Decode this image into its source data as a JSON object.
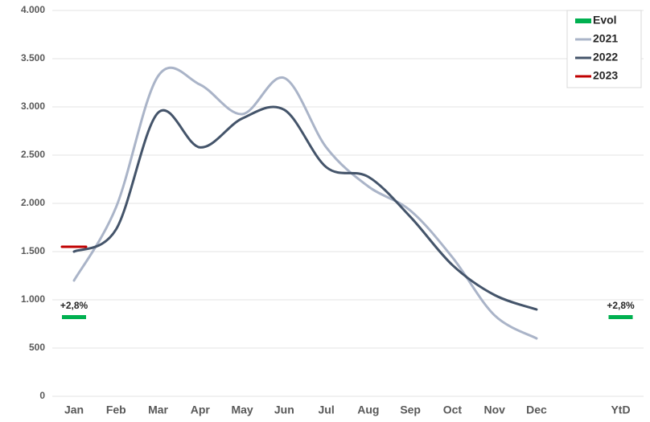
{
  "chart_data": {
    "type": "line",
    "categories": [
      "Jan",
      "Feb",
      "Mar",
      "Apr",
      "May",
      "Jun",
      "Jul",
      "Aug",
      "Sep",
      "Oct",
      "Nov",
      "Dec",
      null,
      "YtD"
    ],
    "series": [
      {
        "name": "Evol",
        "color": "#00b050",
        "values": [
          2.8,
          null,
          null,
          null,
          null,
          null,
          null,
          null,
          null,
          null,
          null,
          null,
          null,
          2.8
        ],
        "value_labels": [
          "+2,8%",
          null,
          null,
          null,
          null,
          null,
          null,
          null,
          null,
          null,
          null,
          null,
          null,
          "+2,8%"
        ]
      },
      {
        "name": "2021",
        "color": "#aab4c8",
        "values": [
          1200,
          1960,
          3320,
          3230,
          2925,
          3300,
          2580,
          2175,
          1925,
          1440,
          840,
          600,
          null,
          null
        ]
      },
      {
        "name": "2022",
        "color": "#44546a",
        "values": [
          1500,
          1730,
          2940,
          2580,
          2880,
          2970,
          2375,
          2275,
          1860,
          1360,
          1050,
          900,
          null,
          null
        ]
      },
      {
        "name": "2023",
        "color": "#c00000",
        "values": [
          1550,
          null,
          null,
          null,
          null,
          null,
          null,
          null,
          null,
          null,
          null,
          null,
          null,
          null
        ]
      }
    ],
    "ylim": [
      0,
      4000
    ],
    "yticks": [
      0,
      500,
      {
        "value": 1000,
        "label": "1.000"
      },
      {
        "value": 1500,
        "label": "1.500"
      },
      {
        "value": 2000,
        "label": "2.000"
      },
      {
        "value": 2500,
        "label": "2.500"
      },
      {
        "value": 3000,
        "label": "3.000"
      },
      {
        "value": 3500,
        "label": "3.500"
      },
      {
        "value": 4000,
        "label": "4.000"
      }
    ],
    "grid": true,
    "legend": "upper right"
  }
}
